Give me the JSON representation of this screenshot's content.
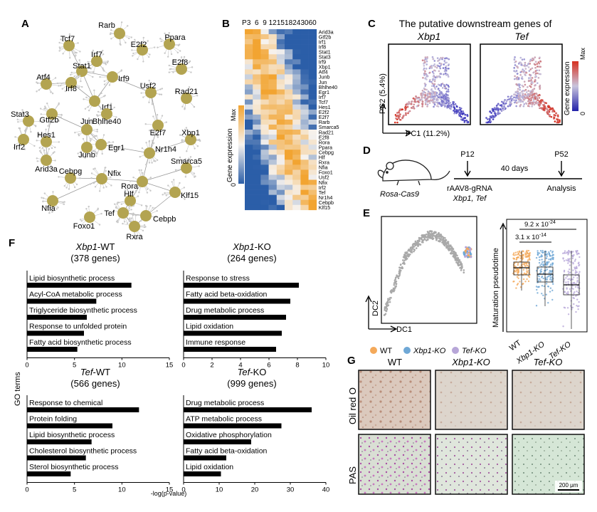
{
  "panels": {
    "A": {
      "letter": "A",
      "nodes": [
        "Rarb",
        "Tcf7",
        "E2f2",
        "Ppara",
        "Irf7",
        "Stat1",
        "Irf9",
        "E2f8",
        "Atf4",
        "Irf8",
        "Usf2",
        "Rad21",
        "Irf1",
        "Bhlhe40",
        "Stat3",
        "Gtf2b",
        "E2f7",
        "Jun",
        "Irf2",
        "Hes1",
        "Xbp1",
        "Egr1",
        "Nr1h4",
        "Junb",
        "Arid3a",
        "Smarca5",
        "Cebpg",
        "Nfix",
        "Rora",
        "Klf15",
        "Nfia",
        "Hlf",
        "Tef",
        "Foxo1",
        "Cebpb",
        "Rxra"
      ]
    },
    "B": {
      "letter": "B",
      "col_prefix": "P",
      "columns": [
        "3",
        "6",
        "9",
        "12",
        "15",
        "18",
        "24",
        "30",
        "60"
      ],
      "legend_title": "Gene expression",
      "legend_max": "Max",
      "legend_min": "0",
      "genes": [
        "Arid3a",
        "Gtf2b",
        "Irf1",
        "Irf8",
        "Stat1",
        "Stat3",
        "Irf9",
        "Xbp1",
        "Atf4",
        "Junb",
        "Jun",
        "Bhlhe40",
        "Egr1",
        "Irf7",
        "Tcf7",
        "Hes1",
        "E2f2",
        "E2f7",
        "Rarb",
        "Smarca5",
        "Rad21",
        "E2f8",
        "Rora",
        "Ppara",
        "Cebpg",
        "Hlf",
        "Rxra",
        "Nfia",
        "Foxo1",
        "Usf2",
        "Nfix",
        "Irf2",
        "Tef",
        "Nr1h4",
        "Cebpb",
        "Klf15"
      ]
    },
    "C": {
      "letter": "C",
      "title": "The putative downstream genes of",
      "genes": [
        "Xbp1",
        "Tef"
      ],
      "xaxis": "PC1 (11.2%)",
      "yaxis": "PC2 (5.4%)",
      "legend_title": "Gene expression",
      "legend_max": "Max",
      "legend_min": "0"
    },
    "D": {
      "letter": "D",
      "mouse": "Rosa-Cas9",
      "t1": "P12",
      "t2": "P52",
      "duration": "40 days",
      "virus": "rAAV8-gRNA",
      "targets": "Xbp1, Tef",
      "end": "Analysis"
    },
    "E": {
      "letter": "E",
      "xaxis": "DC1",
      "yaxis": "DC2",
      "box_ylabel": "Maturation pseudotime",
      "p1": "3.1 x 10",
      "p1_exp": "-14",
      "p2": "9.2 x 10",
      "p2_exp": "-24",
      "groups": [
        "WT",
        "Xbp1-KO",
        "Tef-KO"
      ],
      "legend": [
        {
          "label": "WT",
          "color": "#f4a95a"
        },
        {
          "label": "Xbp1-KO",
          "color": "#6fa8d6"
        },
        {
          "label": "Tef-KO",
          "color": "#b7a6d8"
        }
      ]
    },
    "F": {
      "letter": "F",
      "yaxis": "GO terms",
      "xaxis": "-log(p-value)",
      "charts": [
        {
          "title": "Xbp1-WT",
          "genes": "(378 genes)",
          "terms": [
            "Lipid biosynthetic process",
            "Acyl-CoA metabolic process",
            "Triglyceride biosynthetic process",
            "Response to unfolded protein",
            "Fatty acid biosynthetic process"
          ],
          "values": [
            11.0,
            7.3,
            6.3,
            6.0,
            5.3
          ],
          "ticks": [
            "0",
            "5",
            "10",
            "15"
          ]
        },
        {
          "title": "Xbp1-KO",
          "genes": "(264 genes)",
          "terms": [
            "Response to stress",
            "Fatty acid beta-oxidation",
            "Drug metabolic process",
            "Lipid oxidation",
            "Immune response"
          ],
          "values": [
            8.1,
            7.5,
            7.2,
            6.9,
            6.5
          ],
          "ticks": [
            "0",
            "2",
            "4",
            "6",
            "8",
            "10"
          ]
        },
        {
          "title": "Tef-WT",
          "genes": "(566 genes)",
          "terms": [
            "Response to chemical",
            "Protein folding",
            "Lipid biosynthetic process",
            "Cholesterol biosynthetic process",
            "Sterol biosynthetic process"
          ],
          "values": [
            11.8,
            9.0,
            6.8,
            6.2,
            4.6
          ],
          "ticks": [
            "0",
            "5",
            "10",
            "15"
          ]
        },
        {
          "title": "Tef-KO",
          "genes": "(999 genes)",
          "terms": [
            "Drug metabolic process",
            "ATP metabolic process",
            "Oxidative phosphorylation",
            "Fatty acid beta-oxidation",
            "Lipid oxidation"
          ],
          "values": [
            36.0,
            27.5,
            19.0,
            12.0,
            10.5
          ],
          "ticks": [
            "0",
            "10",
            "20",
            "30",
            "40"
          ]
        }
      ]
    },
    "G": {
      "letter": "G",
      "cols": [
        "WT",
        "Xbp1-KO",
        "Tef-KO"
      ],
      "rows": [
        "Oil red O",
        "PAS"
      ],
      "scale": "200 μm"
    }
  },
  "chart_data": [
    {
      "type": "bar",
      "title": "Xbp1-WT (378 genes)",
      "categories": [
        "Lipid biosynthetic process",
        "Acyl-CoA metabolic process",
        "Triglyceride biosynthetic process",
        "Response to unfolded protein",
        "Fatty acid biosynthetic process"
      ],
      "values": [
        11.0,
        7.3,
        6.3,
        6.0,
        5.3
      ],
      "xlabel": "-log(p-value)",
      "ylabel": "GO terms",
      "xlim": [
        0,
        15
      ]
    },
    {
      "type": "bar",
      "title": "Xbp1-KO (264 genes)",
      "categories": [
        "Response to stress",
        "Fatty acid beta-oxidation",
        "Drug metabolic process",
        "Lipid oxidation",
        "Immune response"
      ],
      "values": [
        8.1,
        7.5,
        7.2,
        6.9,
        6.5
      ],
      "xlabel": "-log(p-value)",
      "ylabel": "GO terms",
      "xlim": [
        0,
        10
      ]
    },
    {
      "type": "bar",
      "title": "Tef-WT (566 genes)",
      "categories": [
        "Response to chemical",
        "Protein folding",
        "Lipid biosynthetic process",
        "Cholesterol biosynthetic process",
        "Sterol biosynthetic process"
      ],
      "values": [
        11.8,
        9.0,
        6.8,
        6.2,
        4.6
      ],
      "xlabel": "-log(p-value)",
      "ylabel": "GO terms",
      "xlim": [
        0,
        15
      ]
    },
    {
      "type": "bar",
      "title": "Tef-KO (999 genes)",
      "categories": [
        "Drug metabolic process",
        "ATP metabolic process",
        "Oxidative phosphorylation",
        "Fatty acid beta-oxidation",
        "Lipid oxidation"
      ],
      "values": [
        36.0,
        27.5,
        19.0,
        12.0,
        10.5
      ],
      "xlabel": "-log(p-value)",
      "ylabel": "GO terms",
      "xlim": [
        0,
        40
      ]
    }
  ]
}
